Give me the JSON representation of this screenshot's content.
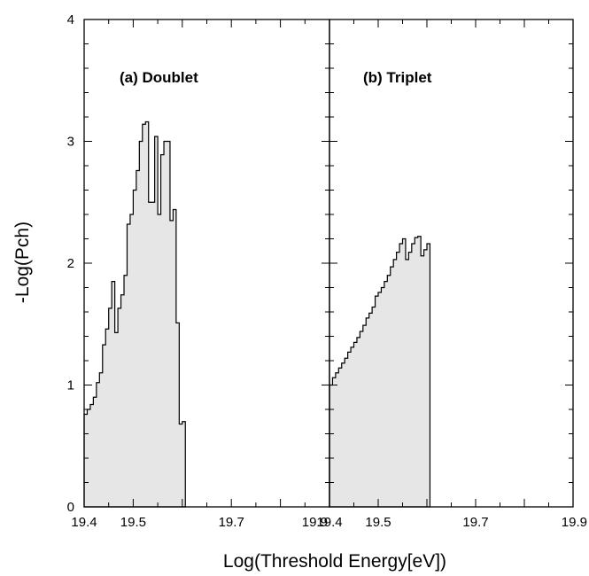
{
  "chart_data": {
    "type": "step-area",
    "title": "",
    "xlabel": "Log(Threshold Energy[eV])",
    "ylabel": "-Log(Pch)",
    "ylim": [
      0,
      4
    ],
    "yticks": [
      "0",
      "1",
      "2",
      "3",
      "4"
    ],
    "grid": false,
    "fill_color": "#e6e6e6",
    "line_color": "#000000",
    "panels": [
      {
        "label": "(a) Doublet",
        "xlim": [
          19.4,
          19.65
        ],
        "xticks": [
          "19.4",
          "19.5",
          "19.7",
          "19.9"
        ],
        "xtick_values": [
          19.4,
          19.5,
          19.7,
          19.9
        ],
        "x_display_max": 19.9,
        "bin_start": 19.4,
        "bin_width": 0.00625,
        "values": [
          0.76,
          0.8,
          0.84,
          0.9,
          1.02,
          1.1,
          1.33,
          1.46,
          1.63,
          1.85,
          1.43,
          1.63,
          1.74,
          1.9,
          2.32,
          2.4,
          2.6,
          2.76,
          3.0,
          3.14,
          3.16,
          2.5,
          2.5,
          3.04,
          2.4,
          2.89,
          3.0,
          3.0,
          2.35,
          2.44,
          1.51,
          0.68,
          0.7
        ]
      },
      {
        "label": "(b) Triplet",
        "xlim": [
          19.4,
          19.65
        ],
        "xticks": [
          "19.4",
          "19.5",
          "19.7",
          "19.9"
        ],
        "xtick_values": [
          19.4,
          19.5,
          19.7,
          19.9
        ],
        "x_display_max": 19.9,
        "bin_start": 19.4,
        "bin_width": 0.00625,
        "values": [
          1.0,
          1.06,
          1.1,
          1.14,
          1.18,
          1.22,
          1.27,
          1.31,
          1.35,
          1.39,
          1.44,
          1.49,
          1.55,
          1.59,
          1.64,
          1.73,
          1.76,
          1.8,
          1.85,
          1.9,
          1.97,
          2.03,
          2.09,
          2.16,
          2.2,
          2.03,
          2.09,
          2.16,
          2.21,
          2.22,
          2.06,
          2.11,
          2.16
        ]
      }
    ]
  }
}
